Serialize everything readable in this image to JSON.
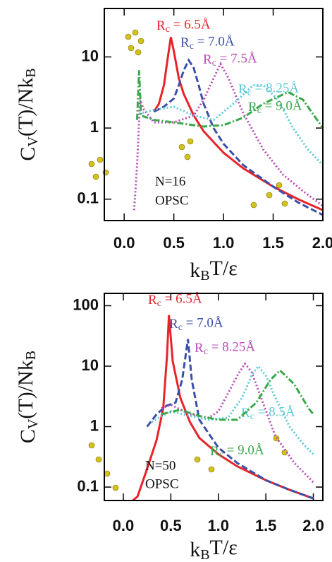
{
  "chart_data": [
    {
      "type": "line",
      "log_y": true,
      "xlabel": [
        "k",
        "B",
        "T/ε"
      ],
      "ylabel": [
        "C",
        "V",
        "(T)/Nk",
        "B"
      ],
      "annotations": [
        "N=16",
        "OPSC"
      ],
      "xlim": [
        -0.2,
        2.0
      ],
      "ylim": [
        0.05,
        48
      ],
      "xticks": [
        {
          "value": 0,
          "label": "0.0"
        },
        {
          "value": 0.5,
          "label": "0.5"
        },
        {
          "value": 1,
          "label": "1.0"
        },
        {
          "value": 1.5,
          "label": "1.5"
        },
        {
          "value": 2,
          "label": "2.0"
        }
      ],
      "yticks": [
        0.1,
        1,
        10
      ],
      "series": [
        {
          "name": [
            "R",
            "c",
            " = 6.5Å"
          ],
          "color": "#e8232a",
          "linestyle": "solid",
          "x": [
            0.3,
            0.35,
            0.4,
            0.44,
            0.47,
            0.5,
            0.55,
            0.6,
            0.7,
            0.8,
            1.0,
            1.2,
            1.5,
            1.75,
            2.0
          ],
          "values": [
            1.7,
            2.2,
            4,
            10,
            19,
            12,
            5,
            3,
            1.5,
            0.9,
            0.45,
            0.27,
            0.15,
            0.1,
            0.07
          ]
        },
        {
          "name": [
            "R",
            "c",
            " = 7.0Å"
          ],
          "color": "#3b4fa8",
          "linestyle": "dashed",
          "x": [
            0.3,
            0.4,
            0.5,
            0.55,
            0.6,
            0.65,
            0.7,
            0.75,
            0.8,
            0.9,
            1.0,
            1.2,
            1.5,
            1.75,
            2.0
          ],
          "values": [
            1.7,
            2.0,
            2.6,
            4,
            6.5,
            9,
            7,
            4,
            2.2,
            1.0,
            0.6,
            0.3,
            0.15,
            0.09,
            0.06
          ]
        },
        {
          "name": [
            "R",
            "c",
            " = 7.5Å"
          ],
          "color": "#b84db8",
          "linestyle": "dotted",
          "x": [
            0.1,
            0.13,
            0.16,
            0.2,
            0.3,
            0.5,
            0.7,
            0.8,
            0.9,
            0.97,
            1.05,
            1.2,
            1.4,
            1.6,
            1.8,
            2.0
          ],
          "values": [
            0.07,
            0.3,
            2.5,
            1.8,
            1.2,
            1.2,
            1.5,
            2.5,
            5,
            8,
            5,
            1.6,
            0.5,
            0.22,
            0.13,
            0.08
          ]
        },
        {
          "name": [
            "R",
            "c",
            " = 8.25Å"
          ],
          "color": "#5bc8d8",
          "linestyle": "dotted",
          "x": [
            0.15,
            0.3,
            0.5,
            0.7,
            0.9,
            1.1,
            1.3,
            1.4,
            1.55,
            1.7,
            1.85,
            2.0
          ],
          "values": [
            1.6,
            1.8,
            2.0,
            1.5,
            1.3,
            2.2,
            4,
            4,
            2.5,
            1.0,
            0.5,
            0.3
          ]
        },
        {
          "name": [
            "R",
            "c",
            " = 9.0Å"
          ],
          "color": "#3aa84a",
          "linestyle": "dashdot",
          "x": [
            0.13,
            0.15,
            0.17,
            0.3,
            0.5,
            0.8,
            1.0,
            1.2,
            1.4,
            1.65,
            1.8,
            2.0
          ],
          "values": [
            1.3,
            6.5,
            1.5,
            1.3,
            1.2,
            1.05,
            1.1,
            1.4,
            2.2,
            3.2,
            2.5,
            1.0
          ]
        }
      ]
    },
    {
      "type": "line",
      "log_y": true,
      "xlabel": [
        "k",
        "B",
        "T/ε"
      ],
      "ylabel": [
        "C",
        "V",
        "(T)/Nk",
        "B"
      ],
      "annotations": [
        "N=50",
        "OPSC"
      ],
      "xlim": [
        -0.2,
        2.1
      ],
      "ylim": [
        0.06,
        160
      ],
      "xticks": [
        {
          "value": 0,
          "label": "0.0"
        },
        {
          "value": 0.5,
          "label": "0.5"
        },
        {
          "value": 1,
          "label": "1.0"
        },
        {
          "value": 1.5,
          "label": "1.5"
        },
        {
          "value": 2,
          "label": "2.0"
        }
      ],
      "yticks": [
        0.1,
        1,
        10,
        100
      ],
      "series": [
        {
          "name": [
            "R",
            "c",
            " = 6.5Å"
          ],
          "color": "#e8232a",
          "linestyle": "solid",
          "x": [
            0.1,
            0.15,
            0.25,
            0.35,
            0.42,
            0.46,
            0.48,
            0.52,
            0.6,
            0.7,
            0.8,
            1.0,
            1.2,
            1.5,
            1.75,
            2.0
          ],
          "values": [
            0.06,
            0.07,
            0.2,
            0.6,
            2,
            15,
            70,
            12,
            3,
            1.2,
            0.65,
            0.35,
            0.22,
            0.13,
            0.09,
            0.065
          ]
        },
        {
          "name": [
            "R",
            "c",
            " = 7.0Å"
          ],
          "color": "#3b4fa8",
          "linestyle": "dashed",
          "x": [
            0.25,
            0.35,
            0.45,
            0.55,
            0.62,
            0.68,
            0.72,
            0.8,
            1.0,
            1.2,
            1.5,
            1.75,
            2.0
          ],
          "values": [
            1.0,
            1.6,
            2.2,
            2.5,
            6,
            28,
            6,
            1.3,
            0.45,
            0.25,
            0.13,
            0.09,
            0.065
          ]
        },
        {
          "name": [
            "R",
            "c",
            " = 8.25Å"
          ],
          "color": "#b84db8",
          "linestyle": "dotted",
          "x": [
            0.4,
            0.5,
            0.7,
            0.9,
            1.0,
            1.1,
            1.2,
            1.28,
            1.35,
            1.45,
            1.6,
            1.8,
            2.0
          ],
          "values": [
            2.0,
            2.3,
            1.6,
            1.4,
            1.8,
            3.5,
            7,
            11,
            8,
            3,
            0.7,
            0.25,
            0.12
          ]
        },
        {
          "name": [
            "R",
            "c",
            " = 8.5Å"
          ],
          "color": "#5bc8d8",
          "linestyle": "dotted",
          "x": [
            0.3,
            0.5,
            0.7,
            0.9,
            1.1,
            1.25,
            1.35,
            1.42,
            1.5,
            1.6,
            1.75,
            1.9,
            2.0
          ],
          "values": [
            1.2,
            1.8,
            1.5,
            1.3,
            1.4,
            3,
            7,
            10,
            7,
            3,
            1.0,
            0.5,
            0.35
          ]
        },
        {
          "name": [
            "R",
            "c",
            " = 9.0Å"
          ],
          "color": "#3aa84a",
          "linestyle": "dashdot",
          "x": [
            0.4,
            0.6,
            0.8,
            1.0,
            1.2,
            1.4,
            1.55,
            1.65,
            1.8,
            1.95,
            2.0
          ],
          "values": [
            1.6,
            1.9,
            1.5,
            1.3,
            1.3,
            2.5,
            6,
            8.5,
            5,
            2,
            1.6
          ]
        }
      ]
    }
  ]
}
